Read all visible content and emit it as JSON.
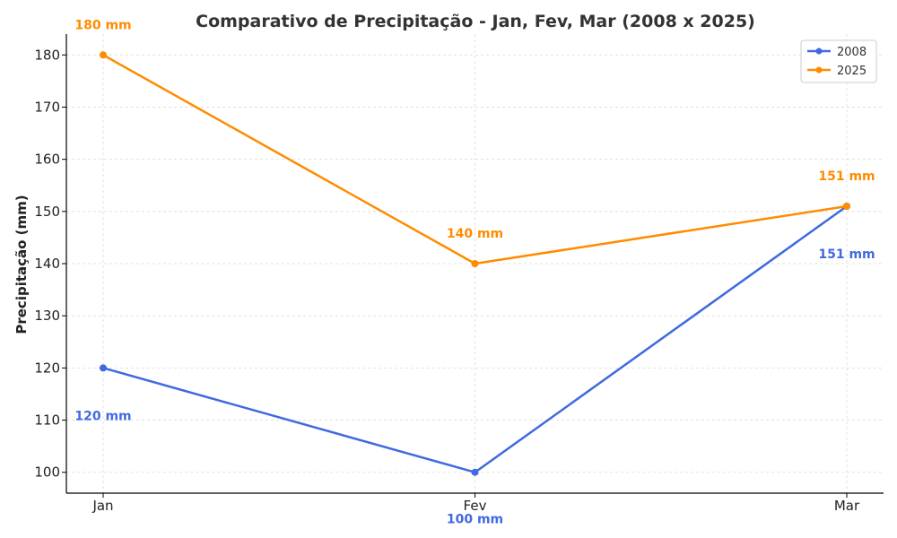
{
  "chart_data": {
    "type": "line",
    "title": "Comparativo de Precipitação - Jan, Fev, Mar (2008 x 2025)",
    "xlabel": "",
    "ylabel": "Precipitação (mm)",
    "categories": [
      "Jan",
      "Fev",
      "Mar"
    ],
    "ylim": [
      96,
      184
    ],
    "yticks": [
      100,
      110,
      120,
      130,
      140,
      150,
      160,
      170,
      180
    ],
    "grid": true,
    "legend_position": "top-right",
    "series": [
      {
        "name": "2008",
        "color": "#4169e1",
        "values": [
          120,
          100,
          151
        ],
        "labels": [
          "120 mm",
          "100 mm",
          "151 mm"
        ]
      },
      {
        "name": "2025",
        "color": "#ff8c00",
        "values": [
          180,
          140,
          151
        ],
        "labels": [
          "180 mm",
          "140 mm",
          "151 mm"
        ]
      }
    ]
  }
}
